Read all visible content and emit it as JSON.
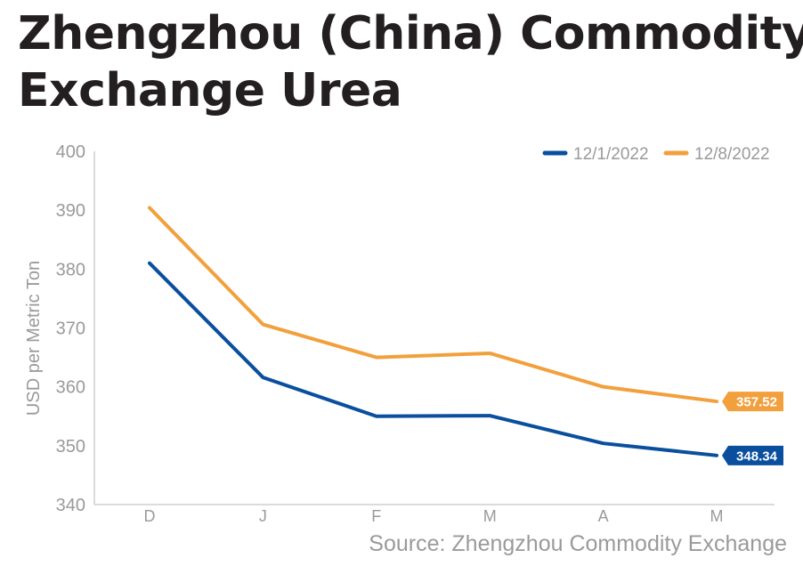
{
  "title_lines": [
    "Zhengzhou (China) Commodity",
    "Exchange Urea"
  ],
  "source": "Source: Zhengzhou Commodity Exchange",
  "chart_data": {
    "type": "line",
    "categories": [
      "D",
      "J",
      "F",
      "M",
      "A",
      "M"
    ],
    "ylabel": "USD per Metric Ton",
    "ylim": [
      340,
      400
    ],
    "yticks": [
      340,
      350,
      360,
      370,
      380,
      390,
      400
    ],
    "grid": false,
    "legend_position": "top-right",
    "series": [
      {
        "name": "12/1/2022",
        "color": "#0a4f9e",
        "values": [
          381.0,
          361.6,
          355.0,
          355.1,
          350.4,
          348.34
        ],
        "end_label": "348.34"
      },
      {
        "name": "12/8/2022",
        "color": "#f2a03d",
        "values": [
          390.4,
          370.6,
          365.0,
          365.7,
          360.0,
          357.52
        ],
        "end_label": "357.52"
      }
    ]
  }
}
